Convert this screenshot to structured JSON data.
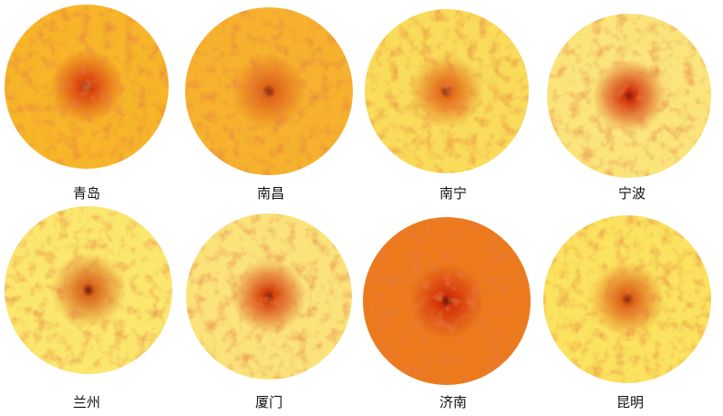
{
  "panels": [
    {
      "city": "青岛",
      "base": "#f7b52a",
      "accent": "#d9400e",
      "center": "#7a1a10"
    },
    {
      "city": "南昌",
      "base": "#f6b22f",
      "accent": "#e0641a",
      "center": "#6e1710"
    },
    {
      "city": "南宁",
      "base": "#f9dc5a",
      "accent": "#e36b18",
      "center": "#6b1612"
    },
    {
      "city": "宁波",
      "base": "#fbe57a",
      "accent": "#d4360f",
      "center": "#8a1e12"
    },
    {
      "city": "兰州",
      "base": "#fbe76e",
      "accent": "#d9661a",
      "center": "#6b1a14"
    },
    {
      "city": "厦门",
      "base": "#fbe37a",
      "accent": "#d6420f",
      "center": "#8a2214"
    },
    {
      "city": "济南",
      "base": "#ec7a1e",
      "accent": "#d3300c",
      "center": "#6a1510"
    },
    {
      "city": "昆明",
      "base": "#fbe25e",
      "accent": "#de6418",
      "center": "#8c2818"
    }
  ]
}
